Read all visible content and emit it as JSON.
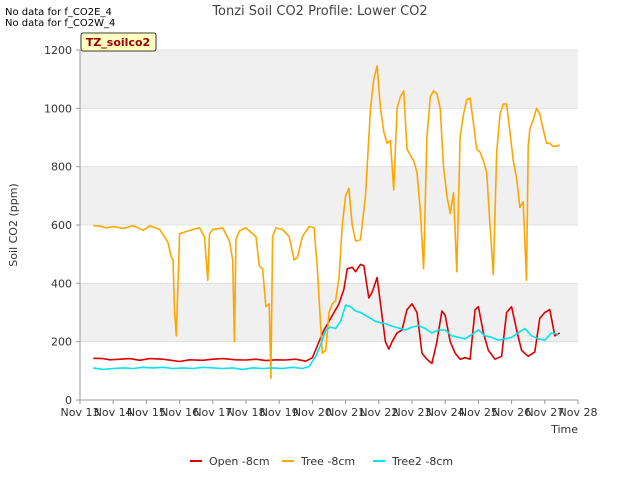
{
  "no_data_notes": [
    "No data for f_CO2E_4",
    "No data for f_CO2W_4"
  ],
  "site_label": "TZ_soilco2",
  "colors": {
    "open": "#dd0000",
    "tree": "#ffa500",
    "tree2": "#00e5ee",
    "band": "#f0f0f0",
    "grid": "#dcdcdc",
    "label_bg": "#ffffc0",
    "label_text": "#990000"
  },
  "chart_data": {
    "type": "line",
    "title": "Tonzi Soil CO2 Profile: Lower CO2",
    "xlabel": "Time",
    "ylabel": "Soil CO2 (ppm)",
    "xlim": [
      13,
      28
    ],
    "ylim": [
      0,
      1200
    ],
    "x_ticks": [
      13,
      14,
      15,
      16,
      17,
      18,
      19,
      20,
      21,
      22,
      23,
      24,
      25,
      26,
      27,
      28
    ],
    "x_tick_labels": [
      "Nov 13",
      "Nov 14",
      "Nov 15",
      "Nov 16",
      "Nov 17",
      "Nov 18",
      "Nov 19",
      "Nov 20",
      "Nov 21",
      "Nov 22",
      "Nov 23",
      "Nov 24",
      "Nov 25",
      "Nov 26",
      "Nov 27",
      "Nov 28"
    ],
    "y_ticks": [
      0,
      200,
      400,
      600,
      800,
      1000,
      1200
    ],
    "legend_position": "bottom-center",
    "series": [
      {
        "name": "Open -8cm",
        "color_key": "open",
        "x": [
          13.4,
          13.7,
          13.9,
          14.2,
          14.5,
          14.8,
          15.1,
          15.5,
          15.8,
          16.0,
          16.3,
          16.7,
          17.0,
          17.3,
          17.7,
          18.0,
          18.3,
          18.6,
          18.9,
          19.2,
          19.5,
          19.8,
          20.0,
          20.2,
          20.35,
          20.5,
          20.65,
          20.8,
          20.95,
          21.05,
          21.2,
          21.3,
          21.45,
          21.55,
          21.7,
          21.8,
          21.95,
          22.05,
          22.2,
          22.3,
          22.4,
          22.55,
          22.7,
          22.85,
          23.0,
          23.15,
          23.3,
          23.45,
          23.6,
          23.75,
          23.9,
          24.0,
          24.15,
          24.3,
          24.45,
          24.6,
          24.75,
          24.9,
          25.0,
          25.15,
          25.3,
          25.5,
          25.7,
          25.85,
          26.0,
          26.15,
          26.3,
          26.5,
          26.7,
          26.85,
          27.0,
          27.15,
          27.3,
          27.45
        ],
        "y": [
          143,
          142,
          138,
          140,
          142,
          136,
          142,
          140,
          135,
          132,
          138,
          136,
          140,
          142,
          138,
          137,
          140,
          135,
          138,
          137,
          140,
          133,
          145,
          200,
          240,
          270,
          300,
          330,
          380,
          450,
          455,
          440,
          465,
          460,
          350,
          370,
          420,
          330,
          200,
          175,
          200,
          230,
          240,
          310,
          330,
          300,
          160,
          140,
          125,
          200,
          305,
          290,
          200,
          160,
          140,
          145,
          140,
          310,
          320,
          230,
          170,
          140,
          150,
          300,
          320,
          240,
          170,
          150,
          165,
          280,
          300,
          310,
          220,
          230
        ]
      },
      {
        "name": "Tree -8cm",
        "color_key": "tree",
        "x": [
          13.4,
          13.6,
          13.8,
          14.0,
          14.3,
          14.6,
          14.9,
          15.1,
          15.4,
          15.65,
          15.75,
          15.8,
          15.85,
          15.9,
          16.0,
          16.4,
          16.6,
          16.75,
          16.8,
          16.85,
          16.9,
          17.0,
          17.3,
          17.5,
          17.6,
          17.65,
          17.7,
          17.8,
          18.0,
          18.3,
          18.4,
          18.5,
          18.6,
          18.7,
          18.75,
          18.8,
          18.9,
          19.1,
          19.3,
          19.45,
          19.55,
          19.7,
          19.9,
          20.05,
          20.15,
          20.25,
          20.3,
          20.4,
          20.5,
          20.6,
          20.7,
          20.8,
          20.9,
          21.0,
          21.1,
          21.2,
          21.3,
          21.45,
          21.6,
          21.75,
          21.85,
          21.95,
          22.05,
          22.15,
          22.25,
          22.35,
          22.45,
          22.55,
          22.65,
          22.75,
          22.85,
          22.95,
          23.05,
          23.15,
          23.25,
          23.35,
          23.45,
          23.55,
          23.65,
          23.75,
          23.85,
          23.95,
          24.05,
          24.15,
          24.25,
          24.35,
          24.45,
          24.55,
          24.65,
          24.75,
          24.85,
          24.95,
          25.05,
          25.15,
          25.25,
          25.35,
          25.45,
          25.55,
          25.65,
          25.75,
          25.85,
          25.95,
          26.05,
          26.15,
          26.25,
          26.35,
          26.45,
          26.5,
          26.55,
          26.65,
          26.75,
          26.85,
          26.95,
          27.05,
          27.15,
          27.25,
          27.35,
          27.45
        ],
        "y": [
          598,
          596,
          590,
          595,
          588,
          598,
          582,
          597,
          585,
          540,
          490,
          480,
          300,
          220,
          570,
          585,
          590,
          560,
          480,
          410,
          570,
          585,
          590,
          545,
          480,
          200,
          550,
          580,
          590,
          560,
          460,
          450,
          320,
          330,
          75,
          560,
          590,
          585,
          560,
          480,
          490,
          560,
          595,
          590,
          450,
          250,
          160,
          170,
          300,
          330,
          340,
          420,
          600,
          700,
          725,
          600,
          545,
          550,
          700,
          1000,
          1100,
          1145,
          1000,
          920,
          880,
          890,
          720,
          1000,
          1040,
          1060,
          860,
          840,
          820,
          780,
          650,
          450,
          900,
          1040,
          1060,
          1050,
          1000,
          800,
          700,
          640,
          710,
          440,
          900,
          980,
          1030,
          1035,
          950,
          860,
          850,
          820,
          780,
          600,
          430,
          850,
          980,
          1015,
          1015,
          920,
          820,
          760,
          660,
          680,
          410,
          870,
          930,
          960,
          1000,
          980,
          930,
          880,
          880,
          870,
          870,
          875
        ]
      },
      {
        "name": "Tree2 -8cm",
        "color_key": "tree2",
        "x": [
          13.4,
          13.7,
          14.0,
          14.3,
          14.6,
          14.9,
          15.2,
          15.5,
          15.8,
          16.1,
          16.4,
          16.7,
          17.0,
          17.3,
          17.6,
          17.9,
          18.2,
          18.5,
          18.8,
          19.1,
          19.4,
          19.7,
          19.9,
          20.1,
          20.25,
          20.4,
          20.55,
          20.7,
          20.85,
          21.0,
          21.15,
          21.3,
          21.45,
          21.6,
          21.75,
          21.9,
          22.05,
          22.2,
          22.35,
          22.5,
          22.65,
          22.8,
          23.0,
          23.2,
          23.4,
          23.6,
          23.8,
          24.0,
          24.2,
          24.4,
          24.6,
          24.8,
          25.0,
          25.2,
          25.4,
          25.6,
          25.8,
          26.0,
          26.2,
          26.4,
          26.6,
          26.8,
          27.0,
          27.2,
          27.4
        ],
        "y": [
          110,
          105,
          108,
          110,
          108,
          112,
          110,
          112,
          108,
          110,
          108,
          112,
          110,
          108,
          110,
          105,
          110,
          108,
          110,
          108,
          112,
          108,
          115,
          150,
          190,
          240,
          250,
          245,
          270,
          325,
          320,
          305,
          300,
          290,
          280,
          270,
          265,
          262,
          255,
          250,
          245,
          240,
          250,
          255,
          245,
          230,
          240,
          240,
          220,
          215,
          210,
          225,
          240,
          220,
          215,
          205,
          210,
          215,
          230,
          245,
          220,
          210,
          205,
          230,
          225
        ]
      }
    ]
  }
}
